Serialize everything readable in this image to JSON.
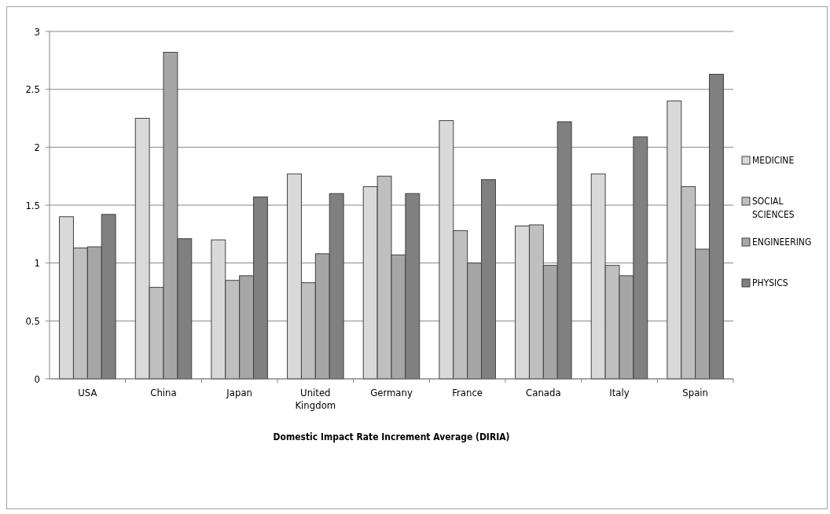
{
  "chart_data": {
    "type": "bar",
    "xlabel": "Domestic Impact Rate Increment Average (DIRIA)",
    "categories": [
      "USA",
      "China",
      "Japan",
      "United Kingdom",
      "Germany",
      "France",
      "Canada",
      "Italy",
      "Spain"
    ],
    "series": [
      {
        "name": "MEDICINE",
        "color": "#d9d9d9",
        "values": [
          1.4,
          2.25,
          1.2,
          1.77,
          1.66,
          2.23,
          1.32,
          1.77,
          2.4
        ]
      },
      {
        "name": "SOCIAL SCIENCES",
        "color": "#bfbfbf",
        "values": [
          1.13,
          0.79,
          0.85,
          0.83,
          1.75,
          1.28,
          1.33,
          0.98,
          1.66
        ]
      },
      {
        "name": "ENGINEERING",
        "color": "#a6a6a6",
        "values": [
          1.14,
          2.82,
          0.89,
          1.08,
          1.07,
          1.0,
          0.98,
          0.89,
          1.12
        ]
      },
      {
        "name": "PHYSICS",
        "color": "#808080",
        "values": [
          1.42,
          1.21,
          1.57,
          1.6,
          1.6,
          1.72,
          2.22,
          2.09,
          2.63
        ]
      }
    ],
    "ylim": [
      0,
      3
    ],
    "yticks": [
      0,
      0.5,
      1,
      1.5,
      2,
      2.5,
      3
    ],
    "grid": "y",
    "legend": "right"
  }
}
